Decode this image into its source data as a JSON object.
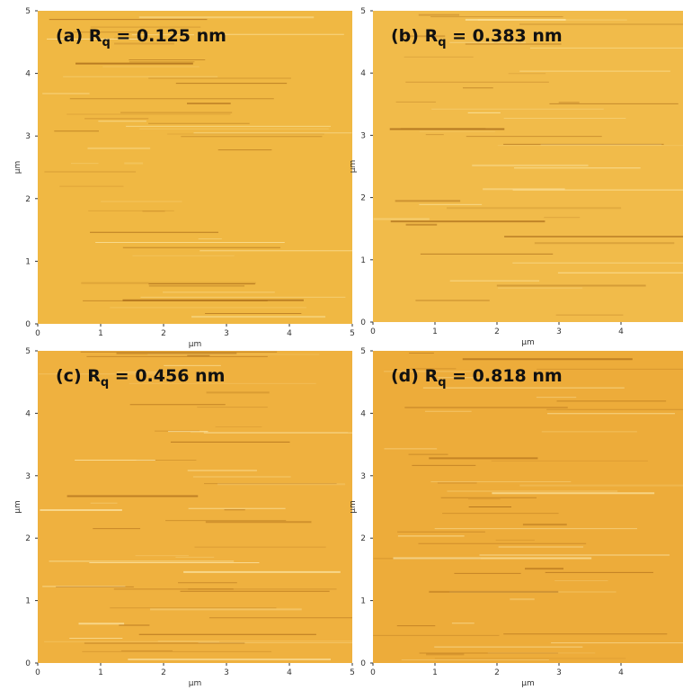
{
  "chart_data": [
    {
      "type": "image",
      "title_parts": [
        "(a) R",
        "q",
        " = 0.125 nm"
      ],
      "xlabel": "μm",
      "ylabel": "μm",
      "xlim": [
        0,
        5
      ],
      "ylim": [
        0,
        5
      ],
      "xticks": [
        0,
        1,
        2,
        3,
        4,
        5
      ],
      "yticks": [
        0,
        1,
        2,
        3,
        4,
        5
      ],
      "color": "#f0b843"
    },
    {
      "type": "image",
      "title_parts": [
        "(b) R",
        "q",
        " = 0.383 nm"
      ],
      "xlabel": "μm",
      "ylabel": "μm",
      "xlim": [
        0,
        5
      ],
      "ylim": [
        0,
        5
      ],
      "xticks": [
        0,
        1,
        2,
        3,
        4
      ],
      "yticks": [
        0,
        1,
        2,
        3,
        4,
        5
      ],
      "color": "#f1bb4a"
    },
    {
      "type": "image",
      "title_parts": [
        "(c) R",
        "q",
        " = 0.456 nm"
      ],
      "xlabel": "μm",
      "ylabel": "μm",
      "xlim": [
        0,
        5
      ],
      "ylim": [
        0,
        5
      ],
      "xticks": [
        0,
        1,
        2,
        3,
        4,
        5
      ],
      "yticks": [
        0,
        1,
        2,
        3,
        4,
        5
      ],
      "color": "#efb13f"
    },
    {
      "type": "image",
      "title_parts": [
        "(d) R",
        "q",
        " = 0.818 nm"
      ],
      "xlabel": "μm",
      "ylabel": "μm",
      "xlim": [
        0,
        5
      ],
      "ylim": [
        0,
        5
      ],
      "xticks": [
        0,
        1,
        2,
        3,
        4
      ],
      "yticks": [
        0,
        1,
        2,
        3,
        4,
        5
      ],
      "color": "#edac3a"
    }
  ]
}
